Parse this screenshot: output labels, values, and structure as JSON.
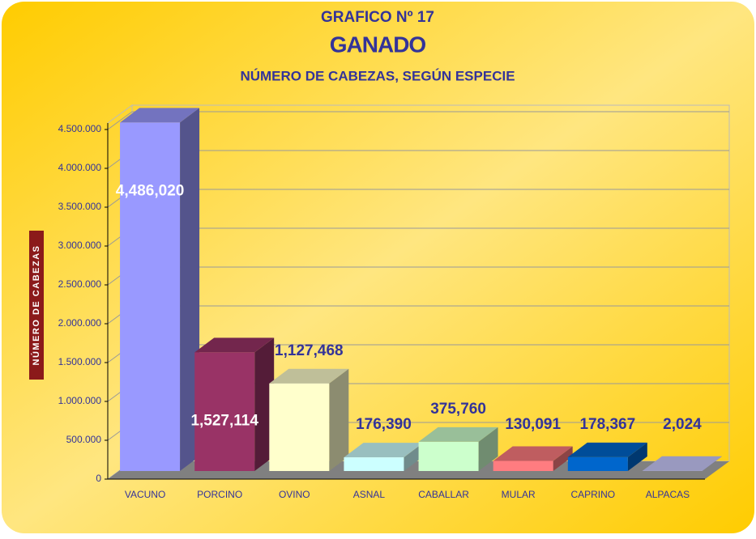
{
  "chart_data": {
    "type": "bar3d",
    "title": "GRAFICO Nº   17",
    "subtitle": "GANADO",
    "caption": "NÚMERO DE CABEZAS, SEGÚN ESPECIE",
    "y_label": "NÚMERO DE CABEZAS",
    "categories": [
      "VACUNO",
      "PORCINO",
      "OVINO",
      "ASNAL",
      "CABALLAR",
      "MULAR",
      "CAPRINO",
      "ALPACAS"
    ],
    "values": [
      4486020,
      1527114,
      1127468,
      176390,
      375760,
      130091,
      178367,
      2024
    ],
    "value_labels": [
      "4,486,020",
      "1,527,114",
      "1,127,468",
      "176,390",
      "375,760",
      "130,091",
      "178,367",
      "2,024"
    ],
    "colors": [
      "#9999ff",
      "#993366",
      "#ffffcc",
      "#ccffff",
      "#ccffcc",
      "#ff7c80",
      "#0066cc",
      "#ccccff"
    ],
    "ylim": [
      0,
      4500000
    ],
    "yticks": [
      0,
      {
        "value": 500000,
        "label": "500.000"
      },
      {
        "value": 1000000,
        "label": "1.000.000"
      },
      {
        "value": 1500000,
        "label": "1.500.000"
      },
      {
        "value": 2000000,
        "label": "2.000.000"
      },
      {
        "value": 2500000,
        "label": "2.500.000"
      },
      {
        "value": 3000000,
        "label": "3.000.000"
      },
      {
        "value": 3500000,
        "label": "3.500.000"
      },
      {
        "value": 4000000,
        "label": "4.000.000"
      },
      {
        "value": 4500000,
        "label": "4.500.000"
      }
    ],
    "grid": true
  }
}
